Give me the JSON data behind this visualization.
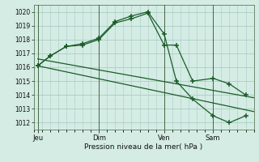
{
  "background_color": "#d4ece4",
  "grid_color": "#a8ccc4",
  "line_color": "#1a5c28",
  "xlabel": "Pression niveau de la mer( hPa )",
  "ylim": [
    1011.5,
    1020.5
  ],
  "yticks": [
    1012,
    1013,
    1014,
    1015,
    1016,
    1017,
    1018,
    1019,
    1020
  ],
  "day_labels": [
    "Jeu",
    "Dim",
    "Ven",
    "Sam"
  ],
  "day_positions": [
    0.5,
    8,
    16,
    22
  ],
  "vline_positions": [
    0.5,
    8,
    16,
    22
  ],
  "xlim": [
    0,
    27
  ],
  "series1_x": [
    0.5,
    2,
    4,
    6,
    8,
    10,
    12,
    14,
    16,
    17.5,
    19.5,
    22,
    24,
    26
  ],
  "series1_y": [
    1016.1,
    1016.8,
    1017.5,
    1017.6,
    1018.0,
    1019.2,
    1019.5,
    1019.9,
    1017.6,
    1017.6,
    1015.0,
    1015.2,
    1014.8,
    1014.0
  ],
  "series2_x": [
    0.5,
    2,
    4,
    6,
    8,
    10,
    12,
    14,
    16,
    17.5,
    19.5,
    22,
    24,
    26
  ],
  "series2_y": [
    1016.1,
    1016.8,
    1017.5,
    1017.7,
    1018.1,
    1019.3,
    1019.7,
    1020.0,
    1018.4,
    1015.0,
    1013.7,
    1012.5,
    1012.0,
    1012.5
  ],
  "series3_x": [
    0.5,
    27
  ],
  "series3_y": [
    1016.6,
    1013.8
  ],
  "series4_x": [
    0.5,
    27
  ],
  "series4_y": [
    1016.1,
    1012.8
  ]
}
